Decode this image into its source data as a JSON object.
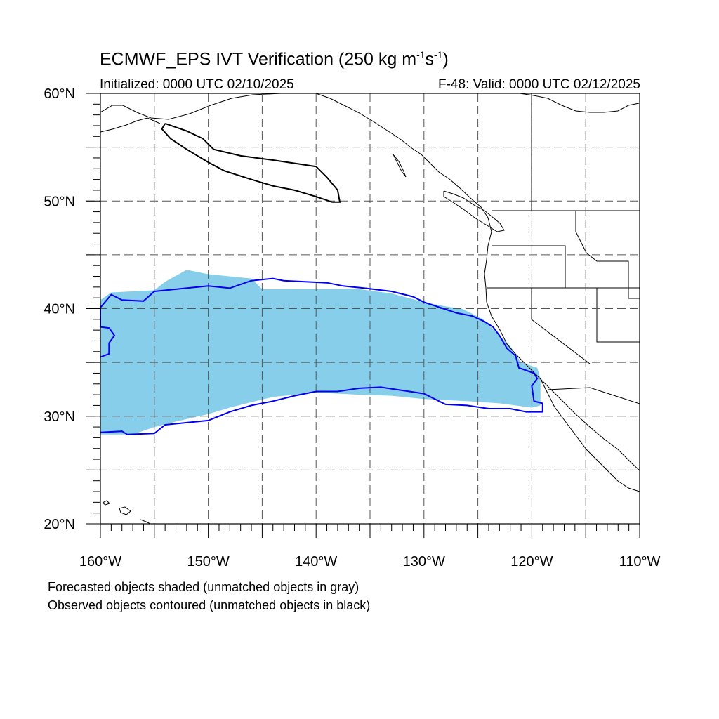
{
  "title": {
    "prefix": "ECMWF_EPS IVT Verification (250 kg m",
    "exp1": "-1",
    "mid": "s",
    "exp2": "-1",
    "suffix": ")"
  },
  "subtitle": {
    "initialized": "Initialized: 0000 UTC 02/10/2025",
    "valid": "F-48: Valid: 0000 UTC 02/12/2025"
  },
  "map": {
    "lon_range": [
      -160,
      -110
    ],
    "lat_range": [
      20,
      60
    ],
    "grid_interval_deg": 5,
    "lat_labels": [
      "20°N",
      "30°N",
      "40°N",
      "50°N",
      "60°N"
    ],
    "lon_labels": [
      "160°W",
      "150°W",
      "140°W",
      "130°W",
      "120°W",
      "110°W"
    ],
    "colors": {
      "forecast_fill": "#87ceeb",
      "observed_matched": "#0000ee",
      "observed_unmatched": "#000000",
      "coastline": "#000000",
      "grid": "#555555"
    },
    "forecast_object_matched": [
      [
        -160,
        28.3
      ],
      [
        -160,
        40.8
      ],
      [
        -159,
        41.5
      ],
      [
        -155,
        41.7
      ],
      [
        -154,
        42.5
      ],
      [
        -152,
        43.6
      ],
      [
        -150,
        43.2
      ],
      [
        -146,
        42.8
      ],
      [
        -145,
        41.8
      ],
      [
        -136,
        41.8
      ],
      [
        -133,
        41.4
      ],
      [
        -130,
        40.6
      ],
      [
        -128,
        40.2
      ],
      [
        -126.5,
        40.0
      ],
      [
        -124.5,
        39.0
      ],
      [
        -123.5,
        38.0
      ],
      [
        -122,
        36.5
      ],
      [
        -121,
        35.0
      ],
      [
        -119.5,
        34.5
      ],
      [
        -119.2,
        33.5
      ],
      [
        -119.2,
        31.0
      ],
      [
        -120,
        30.8
      ],
      [
        -123,
        31.2
      ],
      [
        -126,
        31.4
      ],
      [
        -130,
        31.6
      ],
      [
        -133,
        31.9
      ],
      [
        -136,
        32.0
      ],
      [
        -140,
        32.2
      ],
      [
        -144,
        31.8
      ],
      [
        -146,
        31.3
      ],
      [
        -148,
        30.8
      ],
      [
        -150,
        30.2
      ],
      [
        -153,
        29.5
      ],
      [
        -155,
        29.0
      ],
      [
        -157,
        28.3
      ]
    ],
    "observed_object_matched": [
      [
        -160,
        28.5
      ],
      [
        -158,
        28.6
      ],
      [
        -157.5,
        28.3
      ],
      [
        -155,
        28.4
      ],
      [
        -154,
        29.2
      ],
      [
        -152,
        29.4
      ],
      [
        -150,
        29.6
      ],
      [
        -148,
        30.4
      ],
      [
        -146,
        31.0
      ],
      [
        -144,
        31.4
      ],
      [
        -142,
        31.9
      ],
      [
        -140,
        32.3
      ],
      [
        -138,
        32.3
      ],
      [
        -136,
        32.6
      ],
      [
        -134,
        32.7
      ],
      [
        -132,
        32.4
      ],
      [
        -130,
        32.1
      ],
      [
        -128,
        31.1
      ],
      [
        -126,
        31.0
      ],
      [
        -124,
        30.7
      ],
      [
        -122,
        30.7
      ],
      [
        -120.5,
        30.4
      ],
      [
        -119,
        30.4
      ],
      [
        -119,
        31.2
      ],
      [
        -119.8,
        31.4
      ],
      [
        -120,
        32.8
      ],
      [
        -119.5,
        33.5
      ],
      [
        -119.8,
        34.0
      ],
      [
        -121.2,
        34.5
      ],
      [
        -121.5,
        35.6
      ],
      [
        -122.3,
        36.3
      ],
      [
        -123,
        37.5
      ],
      [
        -123.6,
        38.3
      ],
      [
        -124.4,
        38.8
      ],
      [
        -125.5,
        39.3
      ],
      [
        -127,
        39.6
      ],
      [
        -128.5,
        40.1
      ],
      [
        -130,
        40.6
      ],
      [
        -131,
        41.1
      ],
      [
        -133,
        41.6
      ],
      [
        -135.5,
        41.9
      ],
      [
        -137.5,
        42.1
      ],
      [
        -139,
        42.4
      ],
      [
        -141,
        42.5
      ],
      [
        -143,
        42.6
      ],
      [
        -144,
        42.8
      ],
      [
        -146,
        42.6
      ],
      [
        -148,
        41.9
      ],
      [
        -150,
        42.1
      ],
      [
        -153,
        41.8
      ],
      [
        -155,
        41.6
      ],
      [
        -156,
        40.7
      ],
      [
        -158,
        40.8
      ],
      [
        -159,
        41.3
      ],
      [
        -159.5,
        40.7
      ],
      [
        -160,
        40.1
      ],
      [
        -160,
        38.3
      ],
      [
        -159.2,
        38.2
      ],
      [
        -158.7,
        37.5
      ],
      [
        -159.2,
        36.8
      ],
      [
        -159.2,
        35.8
      ],
      [
        -160,
        35.5
      ]
    ],
    "observed_object_unmatched": [
      [
        -154,
        57.2
      ],
      [
        -152,
        56.5
      ],
      [
        -150.5,
        55.8
      ],
      [
        -149.5,
        54.8
      ],
      [
        -147,
        54.2
      ],
      [
        -144,
        53.8
      ],
      [
        -140,
        53.2
      ],
      [
        -139,
        52.2
      ],
      [
        -138,
        51.0
      ],
      [
        -137.8,
        49.9
      ],
      [
        -138.5,
        49.9
      ],
      [
        -140,
        50.4
      ],
      [
        -142,
        51.0
      ],
      [
        -144,
        51.4
      ],
      [
        -146,
        52.0
      ],
      [
        -148.5,
        52.8
      ],
      [
        -150,
        53.6
      ],
      [
        -152,
        54.8
      ],
      [
        -153.5,
        55.8
      ],
      [
        -154.3,
        56.7
      ]
    ]
  },
  "captions": {
    "forecast": "Forecasted objects shaded (unmatched objects in gray)",
    "observed": "Observed objects contoured (unmatched objects in black)"
  }
}
